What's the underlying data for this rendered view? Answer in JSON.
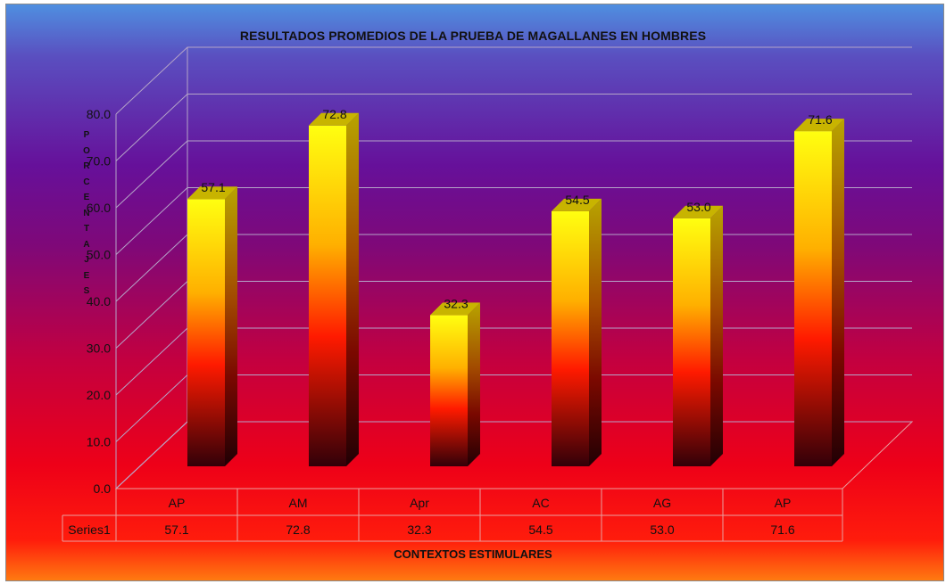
{
  "chart_data": {
    "type": "bar",
    "title": "RESULTADOS PROMEDIOS DE LA  PRUEBA DE MAGALLANES EN HOMBRES",
    "xlabel": "CONTEXTOS ESTIMULARES",
    "ylabel": "PORCENTAJES",
    "categories": [
      "AP",
      "AM",
      "Apr",
      "AC",
      "AG",
      "AP"
    ],
    "series": [
      {
        "name": "Series1",
        "values": [
          57.1,
          72.8,
          32.3,
          54.5,
          53.0,
          71.6
        ]
      }
    ],
    "value_labels": [
      "57.1",
      "72.8",
      "32.3",
      "54.5",
      "53.0",
      "71.6"
    ],
    "yticks": [
      "0.0",
      "10.0",
      "20.0",
      "30.0",
      "40.0",
      "50.0",
      "60.0",
      "70.0",
      "80.0"
    ],
    "ylim": [
      0,
      80
    ],
    "grid": true,
    "legend": "data-table",
    "colors": {
      "bar_top": "#ffff00",
      "bar_mid": "#ff8c00",
      "bar_low": "#ff1a00",
      "bar_base": "#3a0008",
      "bar_side": "#a89600",
      "bar_cap": "#c8b400",
      "grid": "#b5a4c8"
    }
  }
}
